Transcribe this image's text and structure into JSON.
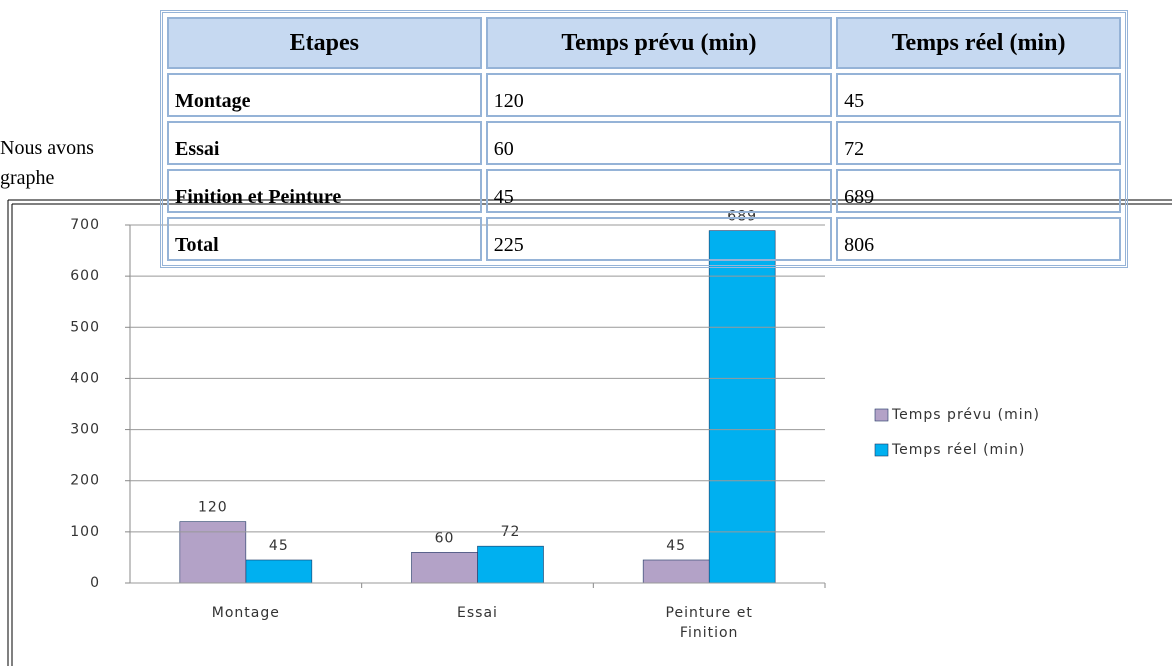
{
  "text": {
    "lines": [
      "Nous avons",
      "graphe"
    ]
  },
  "table": {
    "header": [
      "Etapes",
      "Temps prévu (min)",
      "Temps réel (min)"
    ],
    "rows": [
      [
        "Montage",
        120,
        45
      ],
      [
        "Essai",
        60,
        72
      ],
      [
        "Finition et Peinture",
        45,
        689
      ],
      [
        "Total",
        225,
        806
      ]
    ]
  },
  "chart_data": {
    "type": "bar",
    "categories": [
      "Montage",
      "Essai",
      "Peinture et Finition"
    ],
    "series": [
      {
        "name": "Temps prévu (min)",
        "color": "#b3a2c7",
        "values": [
          120,
          60,
          45
        ]
      },
      {
        "name": "Temps réel (min)",
        "color": "#00b0f0",
        "values": [
          45,
          72,
          689
        ]
      }
    ],
    "ylim": [
      0,
      700
    ],
    "yticks": [
      0,
      100,
      200,
      300,
      400,
      500,
      600,
      700
    ],
    "grid": true,
    "legend": "right"
  }
}
